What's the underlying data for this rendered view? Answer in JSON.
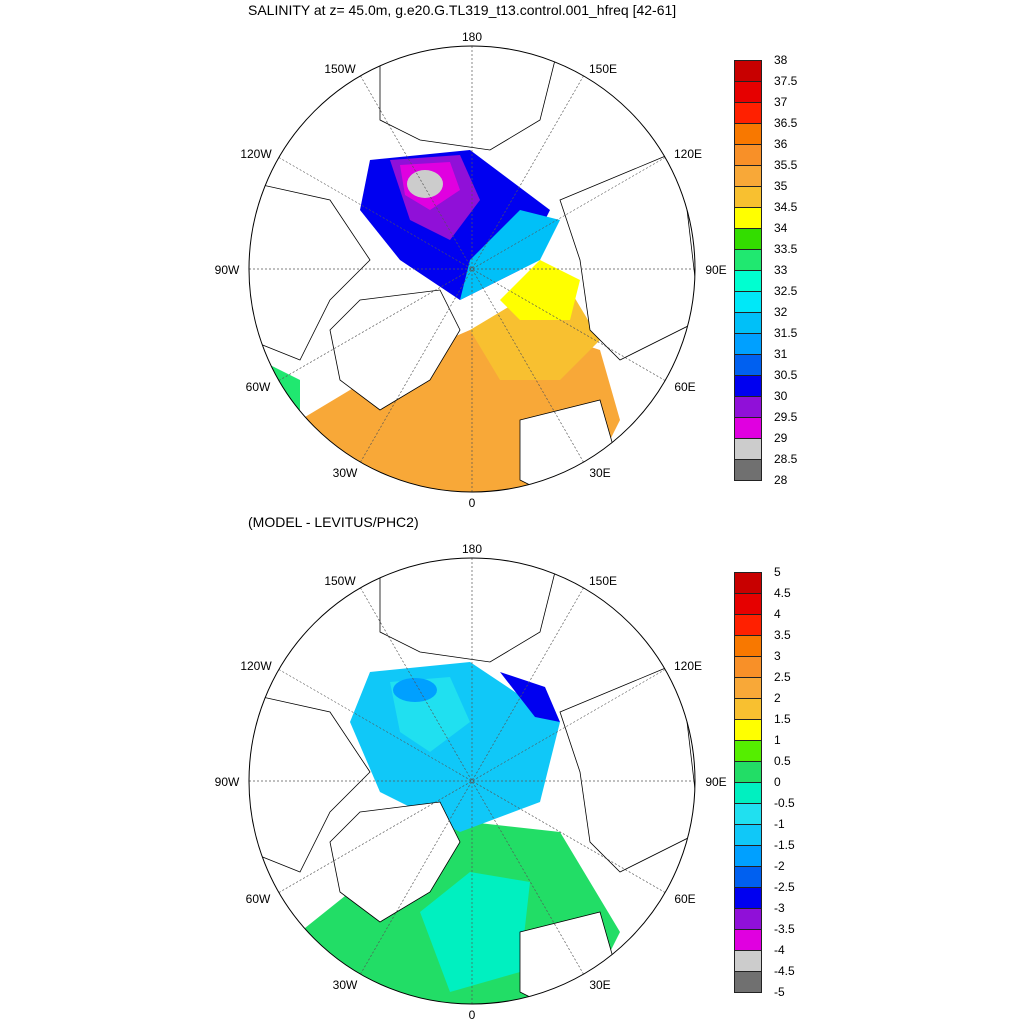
{
  "panels": [
    {
      "title": "SALINITY at z=  45.0m, g.e20.G.TL319_t13.control.001_hfreq [42-61]",
      "colorbar": {
        "labels": [
          "38",
          "37.5",
          "37",
          "36.5",
          "36",
          "35.5",
          "35",
          "34.5",
          "34",
          "33.5",
          "33",
          "32.5",
          "32",
          "31.5",
          "31",
          "30.5",
          "30",
          "29.5",
          "29",
          "28.5",
          "28"
        ],
        "colors": [
          "#c80000",
          "#e60000",
          "#ff2000",
          "#f87800",
          "#f89028",
          "#f8a838",
          "#f8c030",
          "#ffff00",
          "#33dd00",
          "#20e870",
          "#00ffd0",
          "#00e8f8",
          "#00c0f8",
          "#00a0ff",
          "#0060f0",
          "#0000f0",
          "#9010d8",
          "#e000e0",
          "#cccccc",
          "#707070"
        ]
      }
    },
    {
      "title": "(MODEL - LEVITUS/PHC2)",
      "colorbar": {
        "labels": [
          "5",
          "4.5",
          "4",
          "3.5",
          "3",
          "2.5",
          "2",
          "1.5",
          "1",
          "0.5",
          "0",
          "-0.5",
          "-1",
          "-1.5",
          "-2",
          "-2.5",
          "-3",
          "-3.5",
          "-4",
          "-4.5",
          "-5"
        ],
        "colors": [
          "#c80000",
          "#e60000",
          "#ff2000",
          "#f87800",
          "#f89028",
          "#f8a838",
          "#f8c030",
          "#ffff00",
          "#55ee00",
          "#22dd66",
          "#00f0c0",
          "#20e0f0",
          "#10c8f8",
          "#00a0ff",
          "#0060f0",
          "#0000f0",
          "#9010d8",
          "#e000e0",
          "#cccccc",
          "#707070"
        ]
      }
    }
  ],
  "longitude_labels": [
    "180",
    "150W",
    "150E",
    "120W",
    "120E",
    "90W",
    "90E",
    "60W",
    "60E",
    "30W",
    "30E",
    "0"
  ]
}
